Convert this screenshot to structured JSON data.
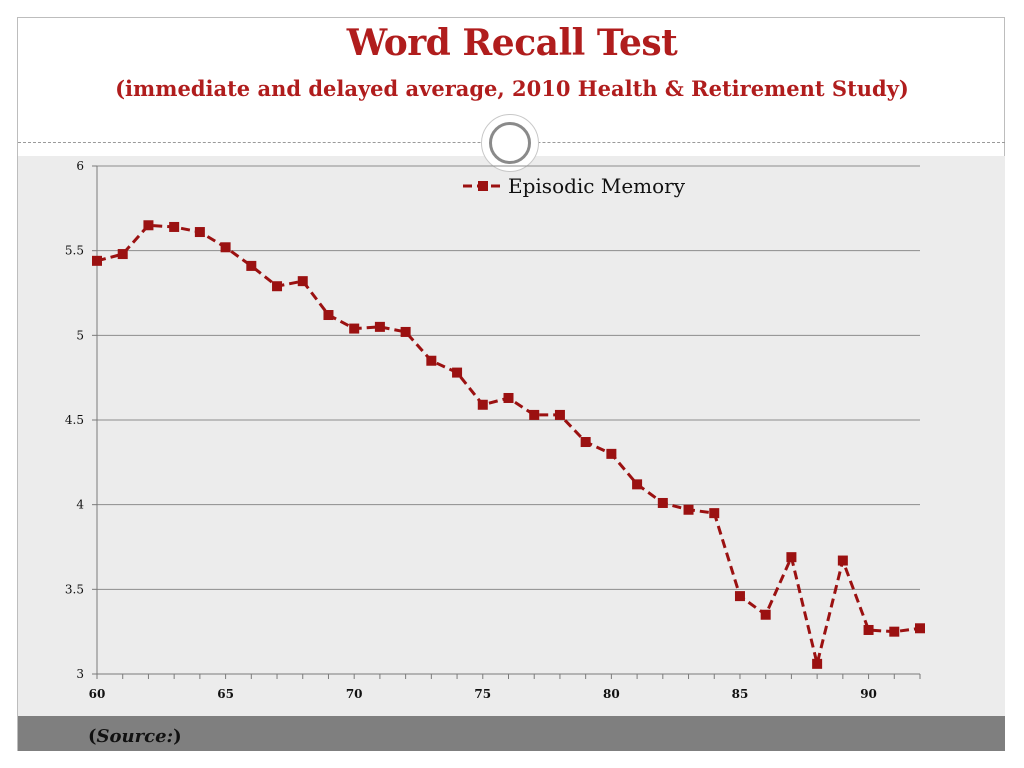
{
  "slide": {
    "title": "Word Recall Test",
    "subtitle": "(immediate and delayed average, 2010 Health & Retirement Study)",
    "source_prefix": "(",
    "source_label": "Source:",
    "source_suffix": ")"
  },
  "colors": {
    "title": "#b01d1d",
    "series": "#9b1111",
    "plot_background": "#ececec",
    "footer": "#7f7f7f",
    "gridline": "#8c8c8c"
  },
  "chart_data": {
    "type": "line",
    "title": "",
    "xlabel": "",
    "ylabel": "",
    "xlim": [
      60,
      92
    ],
    "ylim": [
      3,
      6
    ],
    "x_ticks": [
      60,
      65,
      70,
      75,
      80,
      85,
      90
    ],
    "y_ticks": [
      3,
      3.5,
      4,
      4.5,
      5,
      5.5,
      6
    ],
    "y_tick_labels": [
      "3",
      "3.5",
      "4",
      "4.5",
      "5",
      "5.5",
      "6"
    ],
    "grid": true,
    "legend_position": "top-right",
    "x": [
      60,
      61,
      62,
      63,
      64,
      65,
      66,
      67,
      68,
      69,
      70,
      71,
      72,
      73,
      74,
      75,
      76,
      77,
      78,
      79,
      80,
      81,
      82,
      83,
      84,
      85,
      86,
      87,
      88,
      89,
      90,
      91,
      92
    ],
    "series": [
      {
        "name": "Episodic Memory",
        "line_style": "dashed",
        "marker": "square",
        "values": [
          5.44,
          5.48,
          5.65,
          5.64,
          5.61,
          5.52,
          5.41,
          5.29,
          5.32,
          5.12,
          5.04,
          5.05,
          5.02,
          4.85,
          4.78,
          4.59,
          4.63,
          4.53,
          4.53,
          4.37,
          4.3,
          4.12,
          4.01,
          3.97,
          3.95,
          3.46,
          3.35,
          3.69,
          3.06,
          3.67,
          3.26,
          3.25,
          3.27
        ]
      }
    ]
  }
}
